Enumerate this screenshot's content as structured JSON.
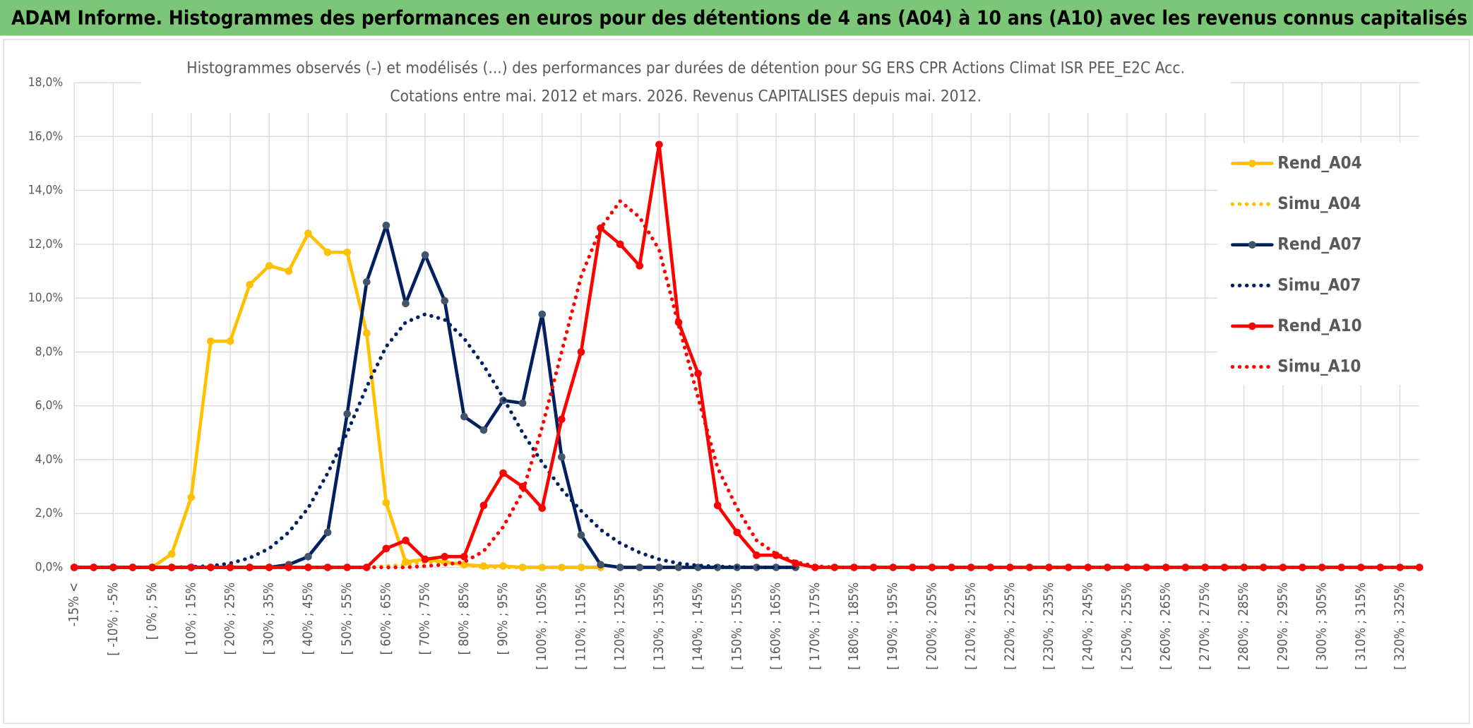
{
  "chart_data": {
    "type": "line",
    "title": "ADAM Informe. Histogrammes des performances en euros pour des détentions de 4 ans (A04) à 10 ans (A10) avec les revenus connus capitalisés",
    "subtitle": [
      "Histogrammes observés (-) et modélisés (...) des performances par durées de détention pour SG ERS CPR Actions Climat ISR PEE_E2C Acc.",
      "Cotations entre mai. 2012 et mars. 2026. Revenus CAPITALISES depuis mai. 2012."
    ],
    "categories": [
      "-15% <",
      null,
      "[ -10% ; -5%",
      null,
      "[ 0% ; 5%",
      null,
      "[ 10% ; 15%",
      null,
      "[ 20% ; 25%",
      null,
      "[ 30% ; 35%",
      null,
      "[ 40% ; 45%",
      null,
      "[ 50% ; 55%",
      null,
      "[ 60% ; 65%",
      null,
      "[ 70% ; 75%",
      null,
      "[ 80% ; 85%",
      null,
      "[ 90% ; 95%",
      null,
      "[ 100% ; 105%",
      null,
      "[ 110% ; 115%",
      null,
      "[ 120% ; 125%",
      null,
      "[ 130% ; 135%",
      null,
      "[ 140% ; 145%",
      null,
      "[ 150% ; 155%",
      null,
      "[ 160% ; 165%",
      null,
      "[ 170% ; 175%",
      null,
      "[ 180% ; 185%",
      null,
      "[ 190% ; 195%",
      null,
      "[ 200% ; 205%",
      null,
      "[ 210% ; 215%",
      null,
      "[ 220% ; 225%",
      null,
      "[ 230% ; 235%",
      null,
      "[ 240% ; 245%",
      null,
      "[ 250% ; 255%",
      null,
      "[ 260% ; 265%",
      null,
      "[ 270% ; 275%",
      null,
      "[ 280% ; 285%",
      null,
      "[ 290% ; 295%",
      null,
      "[ 300% ; 305%",
      null,
      "[ 310% ; 315%",
      null,
      "[ 320% ; 325%",
      null
    ],
    "series": [
      {
        "name": "Rend_A04",
        "color": "#ffc000",
        "style": "solid",
        "markers": true,
        "values": [
          0,
          0,
          0,
          0,
          0,
          0.5,
          2.6,
          8.4,
          8.4,
          10.5,
          11.2,
          11.0,
          12.4,
          11.7,
          11.7,
          8.7,
          2.4,
          0.2,
          0.3,
          0.2,
          0.1,
          0.05,
          0.05,
          0,
          0,
          0,
          0,
          0,
          null,
          null,
          null,
          null,
          null,
          null,
          null,
          null,
          null,
          null,
          null,
          null,
          null,
          null,
          null,
          null,
          null,
          null,
          null,
          null,
          null,
          null,
          null,
          null,
          null,
          null,
          null,
          null,
          null,
          null,
          null,
          null,
          null,
          null,
          null,
          null,
          null,
          null,
          null,
          null,
          null,
          null
        ]
      },
      {
        "name": "Simu_A04",
        "color": "#ffc000",
        "style": "dotted",
        "markers": false,
        "values": [
          0,
          0,
          0,
          0,
          0,
          0,
          0,
          0,
          0,
          0,
          0,
          0,
          0,
          0,
          0,
          0,
          0.05,
          0.1,
          0.2,
          0.2,
          0.1,
          0,
          0,
          0,
          0,
          0,
          0,
          0,
          null,
          null,
          null,
          null,
          null,
          null,
          null,
          null,
          null,
          null,
          null,
          null,
          null,
          null,
          null,
          null,
          null,
          null,
          null,
          null,
          null,
          null,
          null,
          null,
          null,
          null,
          null,
          null,
          null,
          null,
          null,
          null,
          null,
          null,
          null,
          null,
          null,
          null,
          null,
          null,
          null,
          null
        ]
      },
      {
        "name": "Rend_A07",
        "color": "#002060",
        "marker_color": "#44546a",
        "style": "solid",
        "markers": true,
        "values": [
          0,
          0,
          0,
          0,
          0,
          0,
          0,
          0,
          0,
          0,
          0,
          0.1,
          0.4,
          1.3,
          5.7,
          10.6,
          12.7,
          9.8,
          11.6,
          9.9,
          5.6,
          5.1,
          6.2,
          6.1,
          9.4,
          4.1,
          1.2,
          0.1,
          0,
          0,
          0,
          0,
          0,
          0,
          0,
          0,
          0,
          0,
          null,
          null,
          null,
          null,
          null,
          null,
          null,
          null,
          null,
          null,
          null,
          null,
          null,
          null,
          null,
          null,
          null,
          null,
          null,
          null,
          null,
          null,
          null,
          null,
          null,
          null,
          null,
          null,
          null,
          null,
          null,
          null
        ]
      },
      {
        "name": "Simu_A07",
        "color": "#002060",
        "style": "dotted",
        "markers": false,
        "values": [
          0,
          0,
          0,
          0,
          0,
          0,
          0.02,
          0.05,
          0.15,
          0.35,
          0.7,
          1.3,
          2.2,
          3.5,
          5.0,
          6.7,
          8.2,
          9.1,
          9.4,
          9.2,
          8.5,
          7.5,
          6.3,
          5.0,
          3.9,
          2.9,
          2.1,
          1.4,
          0.9,
          0.55,
          0.3,
          0.15,
          0.07,
          0.03,
          0.01,
          0,
          0,
          0,
          null,
          null,
          null,
          null,
          null,
          null,
          null,
          null,
          null,
          null,
          null,
          null,
          null,
          null,
          null,
          null,
          null,
          null,
          null,
          null,
          null,
          null,
          null,
          null,
          null,
          null,
          null,
          null,
          null,
          null,
          null,
          null
        ]
      },
      {
        "name": "Rend_A10",
        "color": "#ff0000",
        "style": "solid",
        "markers": true,
        "values": [
          0,
          0,
          0,
          0,
          0,
          0,
          0,
          0,
          0,
          0,
          0,
          0,
          0,
          0,
          0,
          0,
          0.7,
          1.0,
          0.3,
          0.4,
          0.4,
          2.3,
          3.5,
          3.0,
          2.2,
          5.5,
          8.0,
          12.6,
          12.0,
          11.2,
          15.7,
          9.1,
          7.2,
          2.3,
          1.3,
          0.45,
          0.45,
          0.15,
          0,
          0,
          0,
          0,
          0,
          0,
          0,
          0,
          0,
          0,
          0,
          0,
          0,
          0,
          0,
          0,
          0,
          0,
          0,
          0,
          0,
          0,
          0,
          0,
          0,
          0,
          0,
          0,
          0,
          0,
          0,
          0
        ]
      },
      {
        "name": "Simu_A10",
        "color": "#ff0000",
        "style": "dotted",
        "markers": false,
        "values": [
          0,
          0,
          0,
          0,
          0,
          0,
          0,
          0,
          0,
          0,
          0,
          0,
          0,
          0,
          0,
          0,
          0,
          0,
          0.05,
          0.1,
          0.2,
          0.6,
          1.5,
          2.8,
          5.2,
          8.0,
          10.8,
          12.6,
          13.6,
          13.0,
          11.8,
          9.0,
          6.3,
          3.7,
          2.2,
          1.0,
          0.5,
          0.2,
          0.05,
          0,
          0,
          0,
          0,
          0,
          0,
          0,
          0,
          0,
          0,
          0,
          0,
          0,
          0,
          0,
          0,
          0,
          0,
          0,
          0,
          0,
          0,
          0,
          0,
          0,
          0,
          0,
          0,
          0,
          0,
          0
        ]
      }
    ],
    "ylim": [
      0,
      18
    ],
    "yticks": [
      {
        "value": 0,
        "label": "0,0%"
      },
      {
        "value": 2,
        "label": "2,0%"
      },
      {
        "value": 4,
        "label": "4,0%"
      },
      {
        "value": 6,
        "label": "6,0%"
      },
      {
        "value": 8,
        "label": "8,0%"
      },
      {
        "value": 10,
        "label": "10,0%"
      },
      {
        "value": 12,
        "label": "12,0%"
      },
      {
        "value": 14,
        "label": "14,0%"
      },
      {
        "value": 16,
        "label": "16,0%"
      },
      {
        "value": 18,
        "label": "18,0%"
      }
    ],
    "grid": true,
    "legend": "right",
    "title_background": "#7cc777"
  }
}
